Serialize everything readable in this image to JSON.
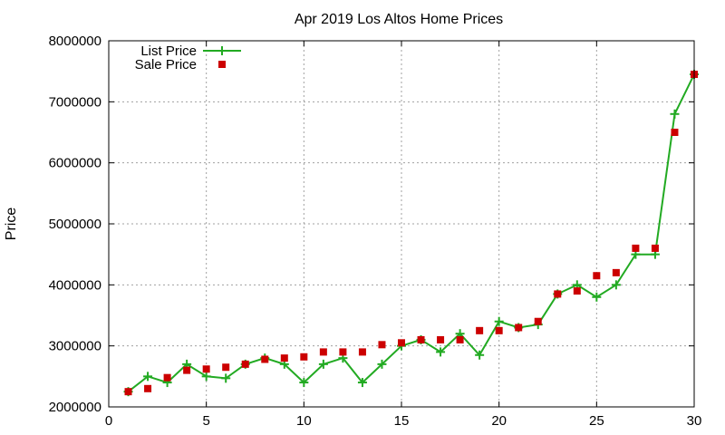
{
  "chart_data": {
    "type": "line",
    "title": "Apr 2019 Los Altos Home Prices",
    "xlabel": "",
    "ylabel": "Price",
    "xlim": [
      0,
      30
    ],
    "ylim": [
      2000000,
      8000000
    ],
    "x_ticks": [
      0,
      5,
      10,
      15,
      20,
      25,
      30
    ],
    "y_ticks": [
      2000000,
      3000000,
      4000000,
      5000000,
      6000000,
      7000000,
      8000000
    ],
    "x_tick_labels": [
      "0",
      "5",
      "10",
      "15",
      "20",
      "25",
      "30"
    ],
    "y_tick_labels": [
      "2000000",
      "3000000",
      "4000000",
      "5000000",
      "6000000",
      "7000000",
      "8000000"
    ],
    "grid": true,
    "legend_position": "top-left",
    "series": [
      {
        "name": "List Price",
        "style": "line+cross",
        "color": "#22aa22",
        "x": [
          1,
          2,
          3,
          4,
          5,
          6,
          7,
          8,
          9,
          10,
          11,
          12,
          13,
          14,
          15,
          16,
          17,
          18,
          19,
          20,
          21,
          22,
          23,
          24,
          25,
          26,
          27,
          28,
          29,
          30
        ],
        "values": [
          2250000,
          2500000,
          2400000,
          2700000,
          2500000,
          2470000,
          2700000,
          2800000,
          2700000,
          2400000,
          2700000,
          2800000,
          2400000,
          2700000,
          3000000,
          3100000,
          2900000,
          3200000,
          2850000,
          3400000,
          3300000,
          3350000,
          3850000,
          4000000,
          3800000,
          4000000,
          4500000,
          4500000,
          6800000,
          7450000
        ]
      },
      {
        "name": "Sale Price",
        "style": "square",
        "color": "#cc0000",
        "x": [
          1,
          2,
          3,
          4,
          5,
          6,
          7,
          8,
          9,
          10,
          11,
          12,
          13,
          14,
          15,
          16,
          17,
          18,
          19,
          20,
          21,
          22,
          23,
          24,
          25,
          26,
          27,
          28,
          29,
          30
        ],
        "values": [
          2250000,
          2300000,
          2480000,
          2600000,
          2620000,
          2650000,
          2700000,
          2780000,
          2800000,
          2820000,
          2900000,
          2900000,
          2900000,
          3020000,
          3050000,
          3100000,
          3100000,
          3100000,
          3250000,
          3250000,
          3300000,
          3400000,
          3850000,
          3900000,
          4150000,
          4200000,
          4600000,
          4600000,
          6500000,
          7450000
        ]
      }
    ]
  }
}
